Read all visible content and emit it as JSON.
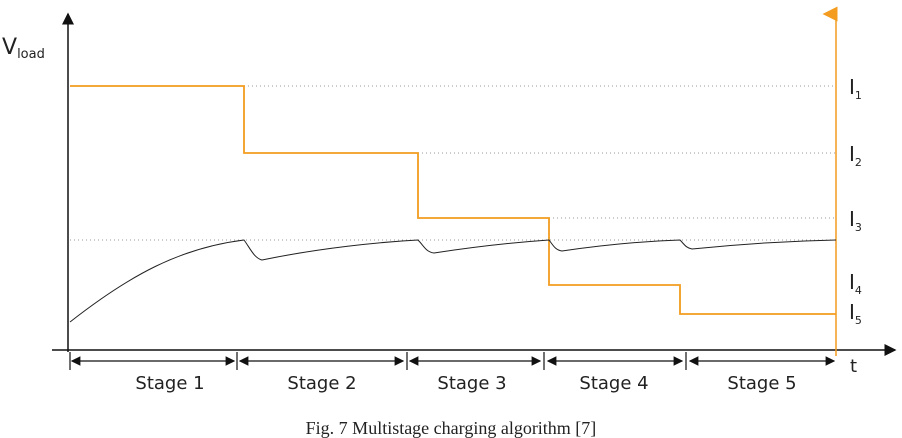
{
  "y_label": {
    "main": "V",
    "sub": "load"
  },
  "x_label": "t",
  "current_labels": [
    {
      "main": "I",
      "sub": "1"
    },
    {
      "main": "I",
      "sub": "2"
    },
    {
      "main": "I",
      "sub": "3"
    },
    {
      "main": "I",
      "sub": "4"
    },
    {
      "main": "I",
      "sub": "5"
    }
  ],
  "stages": [
    "Stage 1",
    "Stage 2",
    "Stage 3",
    "Stage 4",
    "Stage 5"
  ],
  "caption": "Fig. 7 Multistage charging algorithm [7]"
}
